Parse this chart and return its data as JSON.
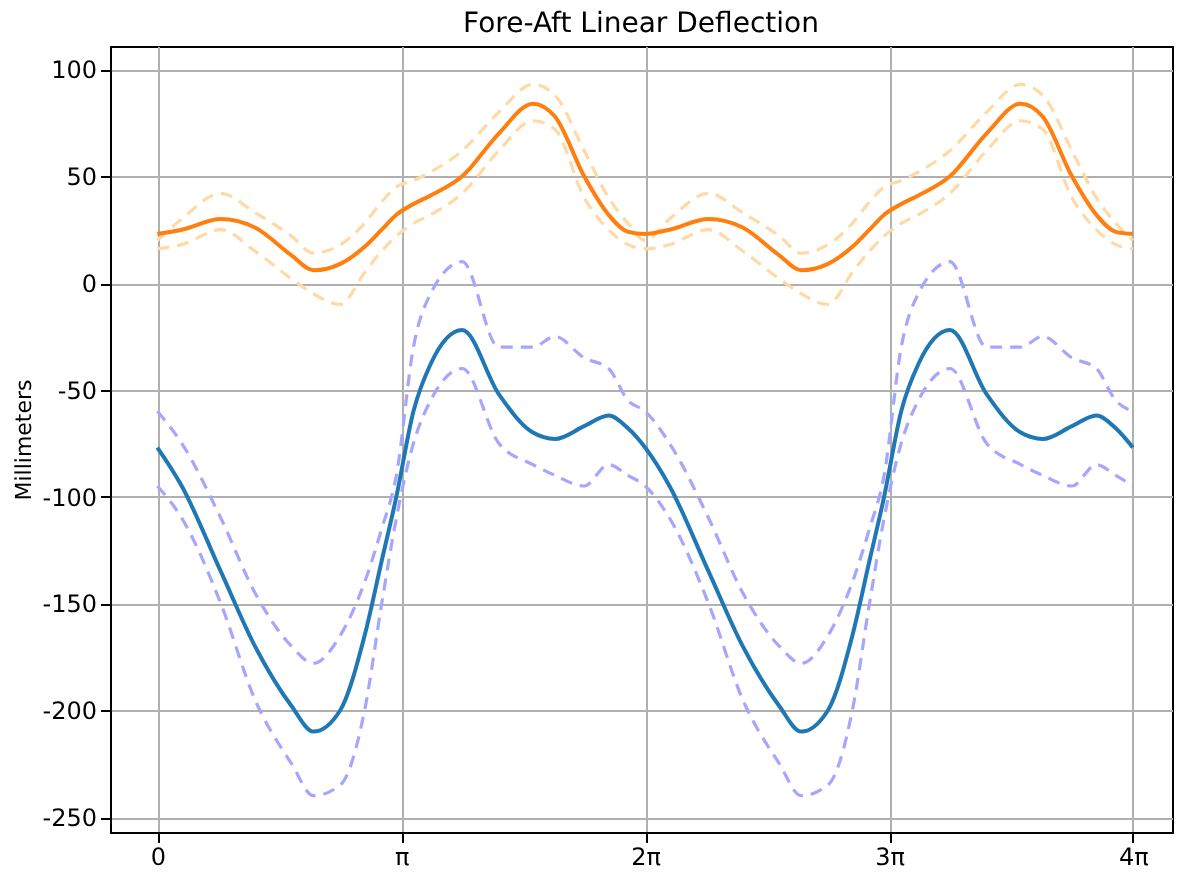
{
  "chart_data": {
    "type": "line",
    "title": "Fore-Aft Linear Deflection",
    "ylabel": "Millimeters",
    "x": [
      0,
      0.314,
      0.817,
      1.257,
      1.728,
      2.011,
      2.356,
      2.67,
      2.89,
      3.079,
      3.299,
      3.519,
      3.927,
      4.398,
      4.838,
      5.121,
      5.498,
      5.812,
      6.063,
      6.283,
      6.597,
      7.1,
      7.54,
      8.011,
      8.294,
      8.639,
      8.953,
      9.173,
      9.362,
      9.582,
      9.802,
      10.21,
      10.681,
      11.121,
      11.404,
      11.781,
      12.095,
      12.346,
      12.566
    ],
    "series": [
      {
        "color": "#ffd9a6",
        "line_style": "dashed",
        "values": [
          20,
          30,
          42,
          33,
          22,
          14,
          18,
          28,
          38,
          45,
          48,
          52,
          62,
          80,
          93,
          88,
          62,
          40,
          28,
          20,
          30,
          42,
          33,
          22,
          14,
          18,
          28,
          38,
          45,
          48,
          52,
          62,
          80,
          93,
          88,
          62,
          40,
          28,
          20
        ]
      },
      {
        "color": "#ffd9a6",
        "line_style": "dashed",
        "values": [
          16,
          18,
          25,
          15,
          2,
          -5,
          -10,
          5,
          15,
          22,
          28,
          32,
          42,
          62,
          76,
          72,
          40,
          25,
          18,
          16,
          18,
          25,
          15,
          2,
          -5,
          -10,
          5,
          15,
          22,
          28,
          32,
          42,
          62,
          76,
          72,
          40,
          25,
          18,
          16
        ]
      },
      {
        "color": "#a6a6ff",
        "line_style": "dashed",
        "values": [
          -60,
          -75,
          -110,
          -145,
          -170,
          -178,
          -165,
          -140,
          -115,
          -90,
          -30,
          -5,
          10,
          -30,
          -30,
          -25,
          -35,
          -40,
          -55,
          -60,
          -75,
          -110,
          -145,
          -170,
          -178,
          -165,
          -140,
          -115,
          -90,
          -30,
          -5,
          10,
          -30,
          -30,
          -25,
          -35,
          -40,
          -55,
          -60
        ]
      },
      {
        "color": "#a6a6ff",
        "line_style": "dashed",
        "values": [
          -95,
          -110,
          -150,
          -195,
          -225,
          -240,
          -235,
          -200,
          -150,
          -110,
          -75,
          -55,
          -40,
          -75,
          -85,
          -90,
          -95,
          -85,
          -90,
          -95,
          -110,
          -150,
          -195,
          -225,
          -240,
          -235,
          -200,
          -150,
          -110,
          -75,
          -55,
          -40,
          -75,
          -85,
          -90,
          -95,
          -85,
          -90,
          -95
        ]
      },
      {
        "color": "#ff7f0e",
        "line_style": "solid",
        "values": [
          23,
          25,
          30,
          26,
          13,
          6,
          9,
          17,
          25,
          32,
          37,
          41,
          50,
          70,
          84,
          78,
          50,
          32,
          24,
          23,
          25,
          30,
          26,
          13,
          6,
          9,
          17,
          25,
          32,
          37,
          41,
          50,
          70,
          84,
          78,
          50,
          32,
          24,
          23
        ]
      },
      {
        "color": "#1f77b4",
        "line_style": "solid",
        "values": [
          -77,
          -95,
          -135,
          -170,
          -198,
          -210,
          -200,
          -165,
          -130,
          -100,
          -60,
          -38,
          -22,
          -52,
          -70,
          -73,
          -67,
          -62,
          -68,
          -77,
          -95,
          -135,
          -170,
          -198,
          -210,
          -200,
          -165,
          -130,
          -100,
          -60,
          -38,
          -22,
          -52,
          -70,
          -73,
          -67,
          -62,
          -68,
          -77
        ]
      }
    ],
    "xlim": [
      -0.61,
      13.07
    ],
    "xticks": [
      0,
      {
        "value": 3.14159,
        "label": "π"
      },
      {
        "value": 6.28319,
        "label": "2π"
      },
      {
        "value": 9.42478,
        "label": "3π"
      },
      {
        "value": 12.56637,
        "label": "4π"
      }
    ],
    "ylim": [
      -257,
      111
    ],
    "yticks": [
      -250,
      -200,
      -150,
      -100,
      -50,
      0,
      50,
      100
    ],
    "grid": true,
    "marker": "none"
  }
}
